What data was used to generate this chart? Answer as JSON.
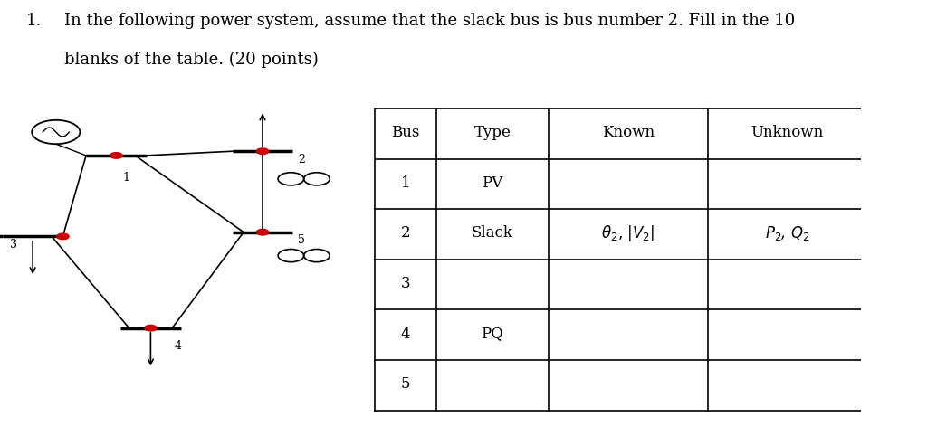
{
  "title_line1": "In the following power system, assume that the slack bus is bus number 2. Fill in the 10",
  "title_line2": "blanks of the table. (20 points)",
  "item_number": "1.",
  "bg_color": "#ffffff",
  "table_headers": [
    "Bus",
    "Type",
    "Known",
    "Unknown"
  ],
  "table_rows": [
    [
      "1",
      "PV",
      "",
      ""
    ],
    [
      "2",
      "Slack",
      "theta2_V2",
      "P2_Q2"
    ],
    [
      "3",
      "",
      "",
      ""
    ],
    [
      "4",
      "PQ",
      "",
      ""
    ],
    [
      "5",
      "",
      "",
      ""
    ]
  ],
  "text_color": "#000000",
  "red_dot_color": "#cc0000",
  "line_color": "#000000"
}
